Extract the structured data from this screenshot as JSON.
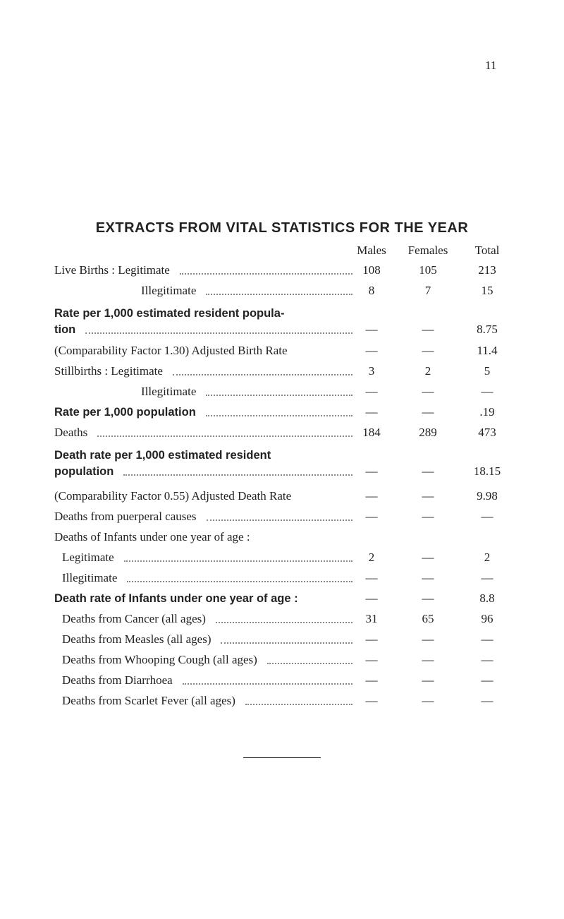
{
  "page_number": "11",
  "title": "EXTRACTS FROM VITAL STATISTICS FOR THE YEAR",
  "columns": [
    "Males",
    "Females",
    "Total"
  ],
  "rows": [
    {
      "label": [
        "Live Births : Legitimate"
      ],
      "values": [
        "108",
        "105",
        "213"
      ]
    },
    {
      "label": [
        "Illegitimate"
      ],
      "values": [
        "8",
        "7",
        "15"
      ]
    },
    {
      "label": [
        "Rate per 1,000 estimated resident popula-",
        "tion"
      ],
      "values": [
        "—",
        "—",
        "8.75"
      ]
    },
    {
      "label": [
        "(Comparability Factor 1.30) Adjusted Birth Rate"
      ],
      "values": [
        "—",
        "—",
        "11.4"
      ]
    },
    {
      "label": [
        "Stillbirths : Legitimate"
      ],
      "values": [
        "3",
        "2",
        "5"
      ]
    },
    {
      "label": [
        "Illegitimate"
      ],
      "values": [
        "—",
        "—",
        "—"
      ]
    },
    {
      "label": [
        "Rate per 1,000 population"
      ],
      "values": [
        "—",
        "—",
        ".19"
      ]
    },
    {
      "label": [
        "Deaths"
      ],
      "values": [
        "184",
        "289",
        "473"
      ]
    },
    {
      "label": [
        "Death rate per 1,000 estimated resident",
        "population"
      ],
      "values": [
        "—",
        "—",
        "18.15"
      ]
    },
    {
      "label": [
        "(Comparability Factor 0.55) Adjusted Death Rate"
      ],
      "values": [
        "—",
        "—",
        "9.98"
      ]
    },
    {
      "label": [
        "Deaths from puerperal causes"
      ],
      "values": [
        "—",
        "—",
        "—"
      ]
    },
    {
      "label": [
        "Deaths of Infants under one year of age :"
      ],
      "values": []
    },
    {
      "label": [
        "Legitimate"
      ],
      "values": [
        "2",
        "—",
        "2"
      ]
    },
    {
      "label": [
        "Illegitimate"
      ],
      "values": [
        "—",
        "—",
        "—"
      ]
    },
    {
      "label": [
        "Death rate of Infants under one year of age :"
      ],
      "values": [
        "—",
        "—",
        "8.8"
      ]
    },
    {
      "label": [
        "Deaths from Cancer (all ages)"
      ],
      "values": [
        "31",
        "65",
        "96"
      ]
    },
    {
      "label": [
        "Deaths from Measles (all ages)"
      ],
      "values": [
        "—",
        "—",
        "—"
      ]
    },
    {
      "label": [
        "Deaths from Whooping Cough (all ages)"
      ],
      "values": [
        "—",
        "—",
        "—"
      ]
    },
    {
      "label": [
        "Deaths from Diarrhoea"
      ],
      "values": [
        "—",
        "—",
        "—"
      ]
    },
    {
      "label": [
        "Deaths from Scarlet Fever (all ages)"
      ],
      "values": [
        "—",
        "—",
        "—"
      ]
    }
  ]
}
